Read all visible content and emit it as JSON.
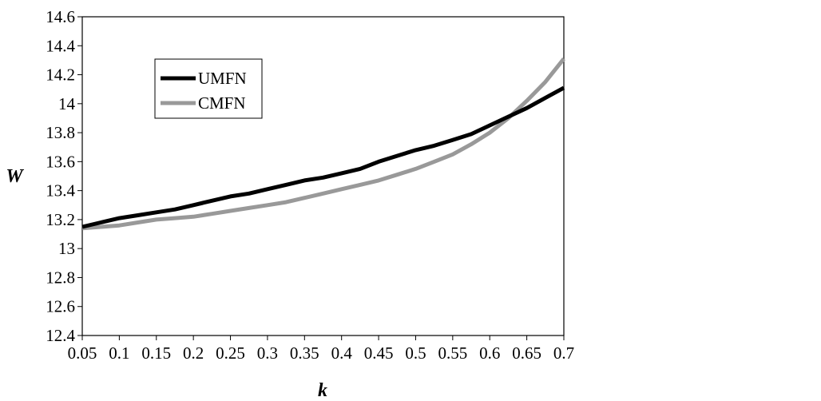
{
  "chart_data": {
    "type": "line",
    "title": "",
    "xlabel": "k",
    "ylabel": "W",
    "xlim": [
      0.05,
      0.7
    ],
    "ylim": [
      12.4,
      14.6
    ],
    "x_ticks": [
      "0.05",
      "0.1",
      "0.15",
      "0.2",
      "0.25",
      "0.3",
      "0.35",
      "0.4",
      "0.45",
      "0.5",
      "0.55",
      "0.6",
      "0.65",
      "0.7"
    ],
    "y_ticks": [
      "12.4",
      "12.6",
      "12.8",
      "13",
      "13.2",
      "13.4",
      "13.6",
      "13.8",
      "14",
      "14.2",
      "14.4",
      "14.6"
    ],
    "grid": false,
    "legend_position": "top-left",
    "x": [
      0.05,
      0.075,
      0.1,
      0.125,
      0.15,
      0.175,
      0.2,
      0.225,
      0.25,
      0.275,
      0.3,
      0.325,
      0.35,
      0.375,
      0.4,
      0.425,
      0.45,
      0.475,
      0.5,
      0.525,
      0.55,
      0.575,
      0.6,
      0.625,
      0.65,
      0.675,
      0.7
    ],
    "series": [
      {
        "name": "UMFN",
        "color": "#000000",
        "values": [
          13.15,
          13.18,
          13.21,
          13.23,
          13.25,
          13.27,
          13.3,
          13.33,
          13.36,
          13.38,
          13.41,
          13.44,
          13.47,
          13.49,
          13.52,
          13.55,
          13.6,
          13.64,
          13.68,
          13.71,
          13.75,
          13.79,
          13.85,
          13.91,
          13.97,
          14.04,
          14.11
        ]
      },
      {
        "name": "CMFN",
        "color": "#999999",
        "values": [
          13.14,
          13.15,
          13.16,
          13.18,
          13.2,
          13.21,
          13.22,
          13.24,
          13.26,
          13.28,
          13.3,
          13.32,
          13.35,
          13.38,
          13.41,
          13.44,
          13.47,
          13.51,
          13.55,
          13.6,
          13.65,
          13.72,
          13.8,
          13.9,
          14.02,
          14.15,
          14.31
        ]
      }
    ]
  }
}
